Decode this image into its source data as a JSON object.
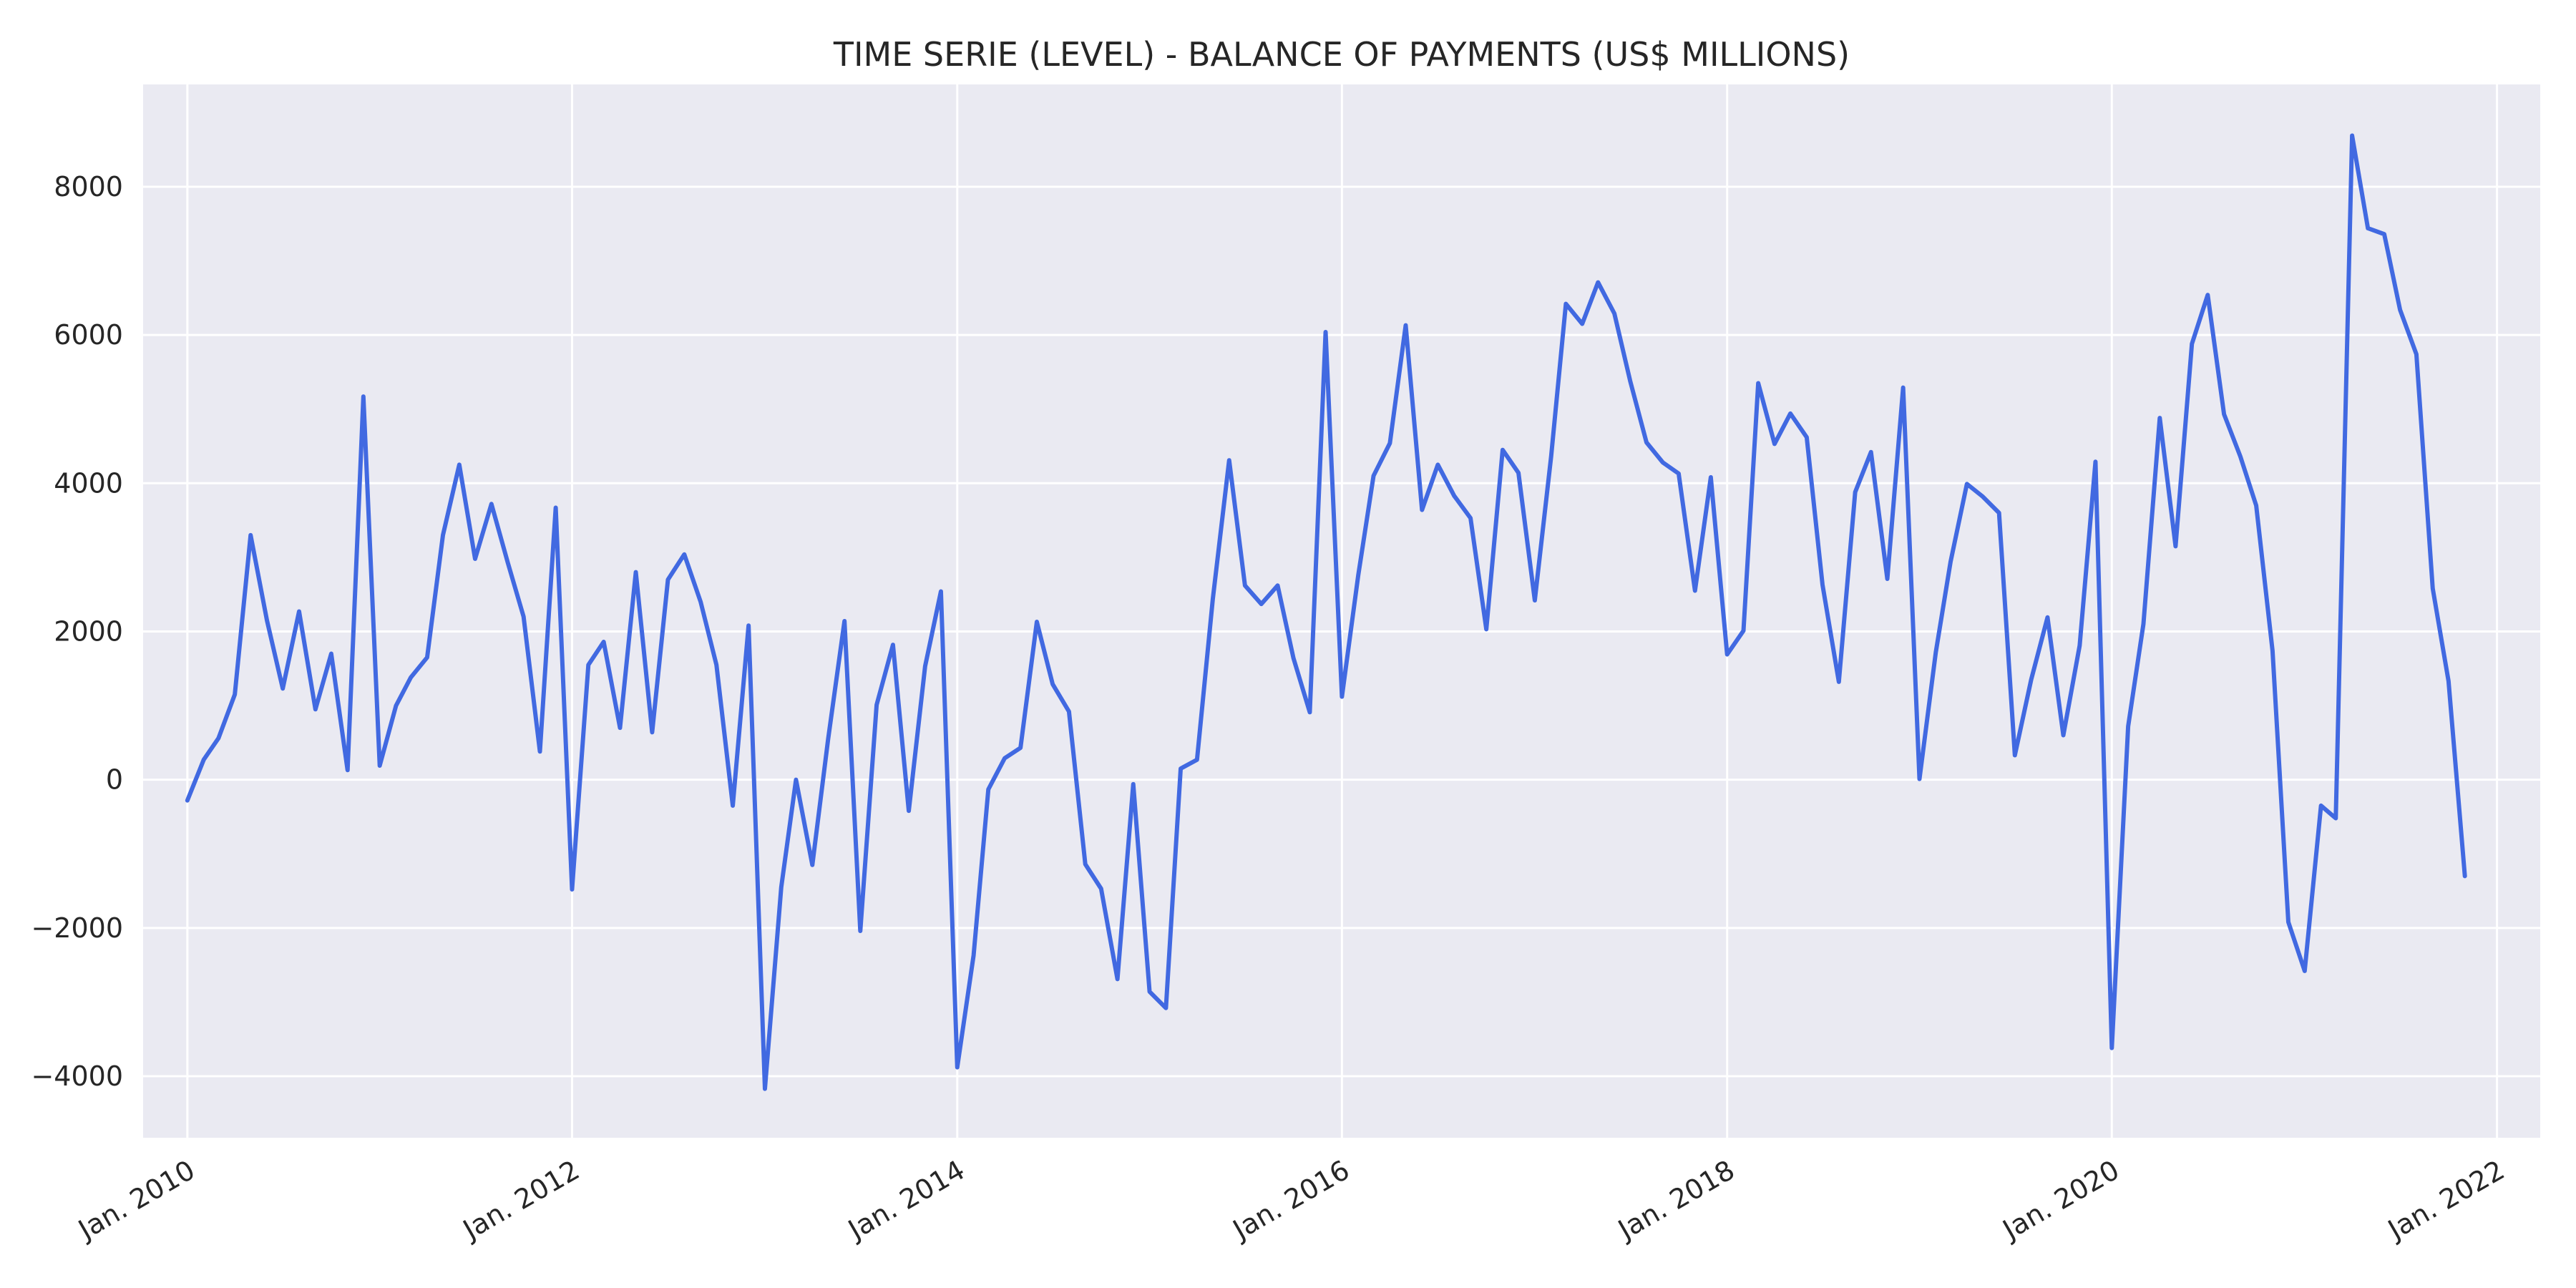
{
  "colors": {
    "series_line": "#4169e1",
    "plot_background": "#eaeaf2",
    "grid": "#ffffff",
    "text": "#262626"
  },
  "chart_data": {
    "type": "line",
    "title": "TIME SERIE (LEVEL) - BALANCE OF PAYMENTS (US$ MILLIONS)",
    "xlabel": "",
    "ylabel": "",
    "grid": true,
    "x_axis": {
      "kind": "date",
      "range": [
        "2009-10-09",
        "2022-03-24"
      ],
      "ticks": [
        {
          "date": "2010-01",
          "label": "Jan. 2010"
        },
        {
          "date": "2012-01",
          "label": "Jan. 2012"
        },
        {
          "date": "2014-01",
          "label": "Jan. 2014"
        },
        {
          "date": "2016-01",
          "label": "Jan. 2016"
        },
        {
          "date": "2018-01",
          "label": "Jan. 2018"
        },
        {
          "date": "2020-01",
          "label": "Jan. 2020"
        },
        {
          "date": "2022-01",
          "label": "Jan. 2022"
        }
      ]
    },
    "y_axis": {
      "range": [
        -4830,
        9380
      ],
      "ticks": [
        {
          "value": -4000,
          "label": "−4000"
        },
        {
          "value": -2000,
          "label": "−2000"
        },
        {
          "value": 0,
          "label": "0"
        },
        {
          "value": 2000,
          "label": "2000"
        },
        {
          "value": 4000,
          "label": "4000"
        },
        {
          "value": 6000,
          "label": "6000"
        },
        {
          "value": 8000,
          "label": "8000"
        }
      ]
    },
    "series": [
      {
        "x": [
          "2010-01",
          "2010-02",
          "2010-03",
          "2010-04",
          "2010-05",
          "2010-06",
          "2010-07",
          "2010-08",
          "2010-09",
          "2010-10",
          "2010-11",
          "2010-12",
          "2011-01",
          "2011-02",
          "2011-03",
          "2011-04",
          "2011-05",
          "2011-06",
          "2011-07",
          "2011-08",
          "2011-09",
          "2011-10",
          "2011-11",
          "2011-12",
          "2012-01",
          "2012-02",
          "2012-03",
          "2012-04",
          "2012-05",
          "2012-06",
          "2012-07",
          "2012-08",
          "2012-09",
          "2012-10",
          "2012-11",
          "2012-12",
          "2013-01",
          "2013-02",
          "2013-03",
          "2013-04",
          "2013-05",
          "2013-06",
          "2013-07",
          "2013-08",
          "2013-09",
          "2013-10",
          "2013-11",
          "2013-12",
          "2014-01",
          "2014-02",
          "2014-03",
          "2014-04",
          "2014-05",
          "2014-06",
          "2014-07",
          "2014-08",
          "2014-09",
          "2014-10",
          "2014-11",
          "2014-12",
          "2015-01",
          "2015-02",
          "2015-03",
          "2015-04",
          "2015-05",
          "2015-06",
          "2015-07",
          "2015-08",
          "2015-09",
          "2015-10",
          "2015-11",
          "2015-12",
          "2016-01",
          "2016-02",
          "2016-03",
          "2016-04",
          "2016-05",
          "2016-06",
          "2016-07",
          "2016-08",
          "2016-09",
          "2016-10",
          "2016-11",
          "2016-12",
          "2017-01",
          "2017-02",
          "2017-03",
          "2017-04",
          "2017-05",
          "2017-06",
          "2017-07",
          "2017-08",
          "2017-09",
          "2017-10",
          "2017-11",
          "2017-12",
          "2018-01",
          "2018-02",
          "2018-03",
          "2018-04",
          "2018-05",
          "2018-06",
          "2018-07",
          "2018-08",
          "2018-09",
          "2018-10",
          "2018-11",
          "2018-12",
          "2019-01",
          "2019-02",
          "2019-03",
          "2019-04",
          "2019-05",
          "2019-06",
          "2019-07",
          "2019-08",
          "2019-09",
          "2019-10",
          "2019-11",
          "2019-12",
          "2020-01",
          "2020-02",
          "2020-03",
          "2020-04",
          "2020-05",
          "2020-06",
          "2020-07",
          "2020-08",
          "2020-09",
          "2020-10",
          "2020-11",
          "2020-12",
          "2021-01",
          "2021-02",
          "2021-03",
          "2021-04",
          "2021-05",
          "2021-06",
          "2021-07",
          "2021-08",
          "2021-09",
          "2021-10",
          "2021-11"
        ],
        "y": [
          -280,
          270,
          560,
          1150,
          3300,
          2150,
          1230,
          2270,
          950,
          1700,
          130,
          5170,
          190,
          1000,
          1380,
          1650,
          3300,
          4250,
          2980,
          3720,
          2930,
          2200,
          380,
          3670,
          -1480,
          1550,
          1860,
          700,
          2800,
          640,
          2700,
          3040,
          2400,
          1550,
          -350,
          2080,
          -4170,
          -1450,
          0,
          -1150,
          550,
          2140,
          -2040,
          1010,
          1820,
          -420,
          1530,
          2540,
          -3880,
          -2370,
          -130,
          290,
          430,
          2130,
          1290,
          920,
          -1140,
          -1470,
          -2690,
          -60,
          -2860,
          -3080,
          150,
          270,
          2440,
          4310,
          2620,
          2370,
          2620,
          1640,
          910,
          6040,
          1120,
          2760,
          4100,
          4540,
          6130,
          3640,
          4250,
          3830,
          3530,
          2030,
          4450,
          4140,
          2420,
          4360,
          6420,
          6150,
          6710,
          6290,
          5380,
          4550,
          4280,
          4130,
          2550,
          4080,
          1690,
          2010,
          5350,
          4530,
          4940,
          4620,
          2630,
          1320,
          3880,
          4420,
          2710,
          5290,
          10,
          1720,
          2940,
          3990,
          3820,
          3600,
          330,
          1350,
          2190,
          600,
          1810,
          4290,
          -3620,
          720,
          2100,
          4880,
          3150,
          5880,
          6540,
          4930,
          4360,
          3700,
          1740,
          -1920,
          -2580,
          -350,
          -520,
          8690,
          7440,
          7360,
          6340,
          5740,
          2580,
          1330,
          -1300
        ]
      }
    ]
  }
}
